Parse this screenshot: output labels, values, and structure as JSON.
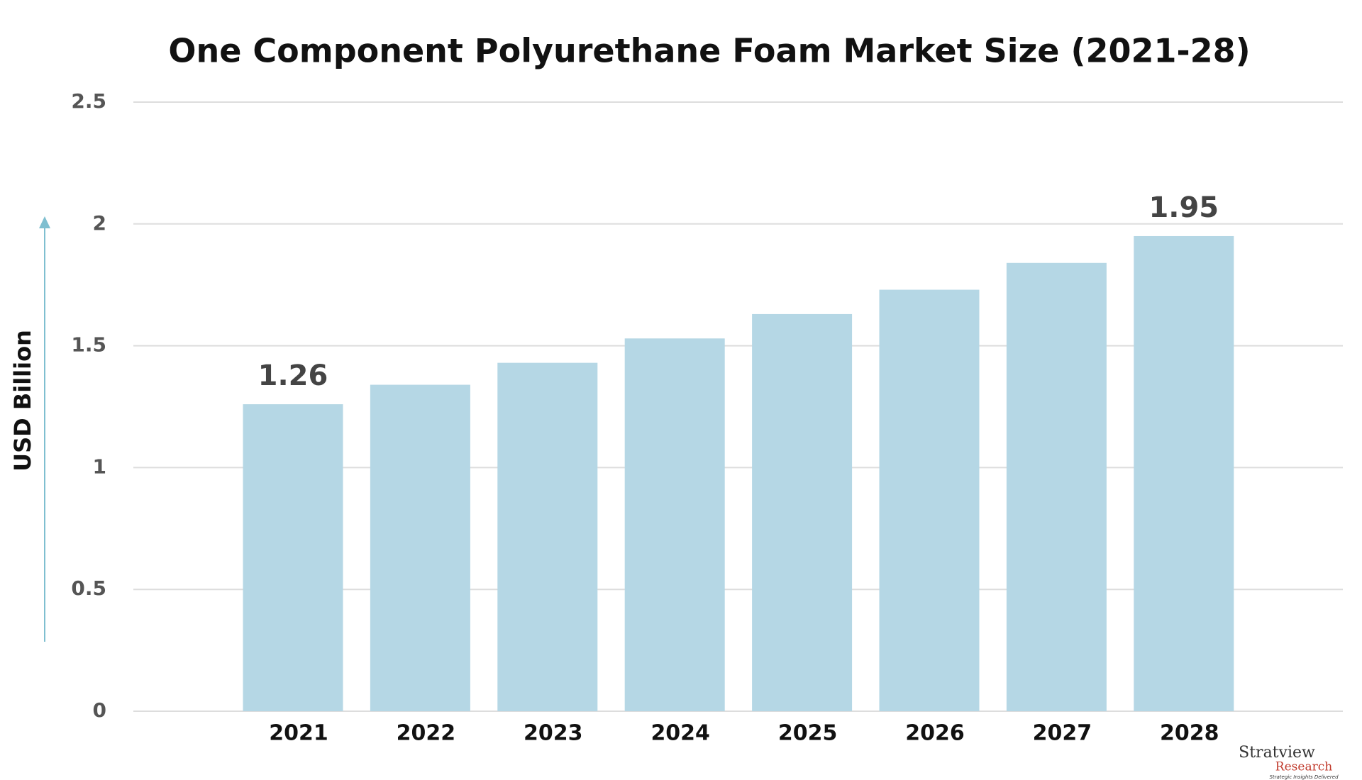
{
  "chart_data": {
    "type": "bar",
    "title": "One Component Polyurethane Foam Market Size (2021-28)",
    "y_label": "USD Billion",
    "categories": [
      "2021",
      "2022",
      "2023",
      "2024",
      "2025",
      "2026",
      "2027",
      "2028"
    ],
    "values": [
      1.26,
      1.34,
      1.43,
      1.53,
      1.63,
      1.73,
      1.84,
      1.95
    ],
    "value_labels": [
      "1.26",
      null,
      null,
      null,
      null,
      null,
      null,
      "1.95"
    ],
    "color": "#b5d7e5",
    "ylim": [
      0,
      2.5
    ],
    "yticks": [
      0,
      0.5,
      1,
      1.5,
      2,
      2.5
    ],
    "grid": true,
    "logo": {
      "name": "Stratview",
      "sub": "Research",
      "tagline": "Strategic Insights Delivered"
    }
  }
}
